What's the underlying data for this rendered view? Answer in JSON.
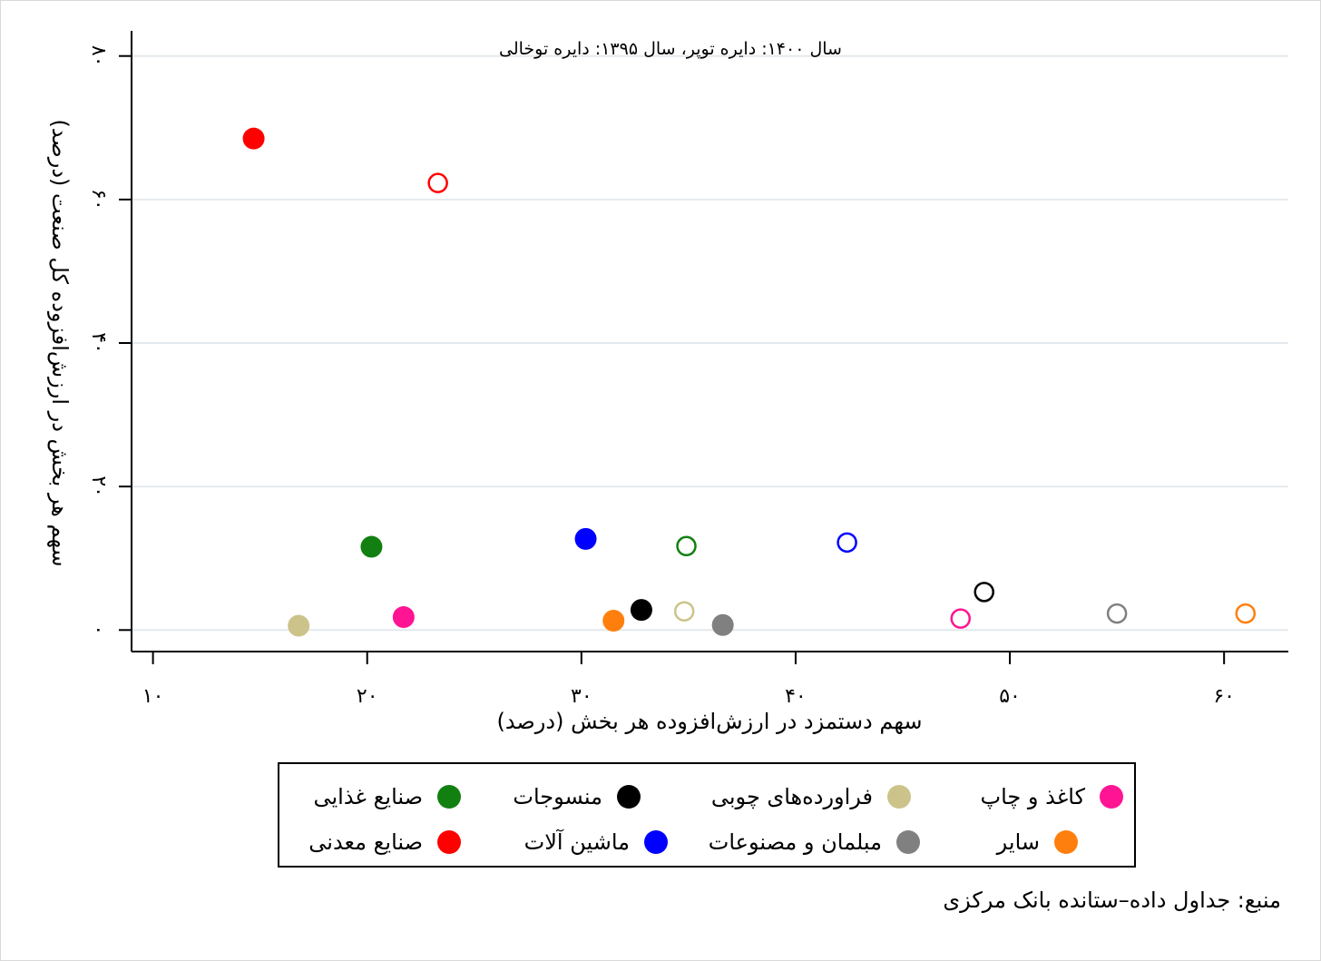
{
  "chart_data": {
    "type": "scatter",
    "annotation": "سال ۱۴۰۰: دایره توپر، سال ۱۳۹۵: دایره توخالی",
    "xlabel": "سهم دستمزد در ارزش‌افزوده هر بخش (درصد)",
    "ylabel": "سهم هر بخش در ارزش‌افزوده کل صنعت (درصد)",
    "xlim": [
      9,
      63
    ],
    "ylim": [
      -3,
      83
    ],
    "x_ticks": [
      10,
      20,
      30,
      40,
      50,
      60
    ],
    "x_tick_labels": [
      "۱۰",
      "۲۰",
      "۳۰",
      "۴۰",
      "۵۰",
      "۶۰"
    ],
    "y_ticks": [
      0,
      20,
      40,
      60,
      80
    ],
    "y_tick_labels": [
      "۰",
      "۲۰",
      "۴۰",
      "۶۰",
      "۸۰"
    ],
    "grid": "horizontal",
    "legend_placement": "bottom",
    "fill_meaning": {
      "filled": "1400",
      "hollow": "1395"
    },
    "series": [
      {
        "name": "صنایع غذایی",
        "color": "#118011",
        "points": [
          {
            "year": "1400",
            "x": 20.2,
            "y": 11.6
          },
          {
            "year": "1395",
            "x": 34.9,
            "y": 11.7
          }
        ]
      },
      {
        "name": "منسوجات",
        "color": "#000000",
        "points": [
          {
            "year": "1400",
            "x": 32.8,
            "y": 2.8
          },
          {
            "year": "1395",
            "x": 48.8,
            "y": 5.3
          }
        ]
      },
      {
        "name": "فراورده‌های چوبی",
        "color": "#ccc38b",
        "points": [
          {
            "year": "1400",
            "x": 16.8,
            "y": 0.6
          },
          {
            "year": "1395",
            "x": 34.8,
            "y": 2.6
          }
        ]
      },
      {
        "name": "کاغذ و چاپ",
        "color": "#ff1493",
        "points": [
          {
            "year": "1400",
            "x": 21.7,
            "y": 1.8
          },
          {
            "year": "1395",
            "x": 47.7,
            "y": 1.6
          }
        ]
      },
      {
        "name": "صنایع معدنی",
        "color": "#ff0000",
        "points": [
          {
            "year": "1400",
            "x": 14.7,
            "y": 68.5
          },
          {
            "year": "1395",
            "x": 23.3,
            "y": 62.3
          }
        ]
      },
      {
        "name": "ماشین آلات",
        "color": "#0000ff",
        "points": [
          {
            "year": "1400",
            "x": 30.2,
            "y": 12.7
          },
          {
            "year": "1395",
            "x": 42.4,
            "y": 12.2
          }
        ]
      },
      {
        "name": "مبلمان و مصنوعات",
        "color": "#808080",
        "points": [
          {
            "year": "1400",
            "x": 36.6,
            "y": 0.7
          },
          {
            "year": "1395",
            "x": 55.0,
            "y": 2.3
          }
        ]
      },
      {
        "name": "سایر",
        "color": "#ff7f0e",
        "points": [
          {
            "year": "1400",
            "x": 31.5,
            "y": 1.3
          },
          {
            "year": "1395",
            "x": 61.0,
            "y": 2.3
          }
        ]
      }
    ]
  },
  "legend_rows": [
    [
      "صنایع غذایی",
      "منسوجات",
      "فراورده‌های چوبی",
      "کاغذ و چاپ"
    ],
    [
      "صنایع معدنی",
      "ماشین آلات",
      "مبلمان و مصنوعات",
      "سایر"
    ]
  ],
  "source": "منبع: جداول داده–ستانده بانک مرکزی"
}
